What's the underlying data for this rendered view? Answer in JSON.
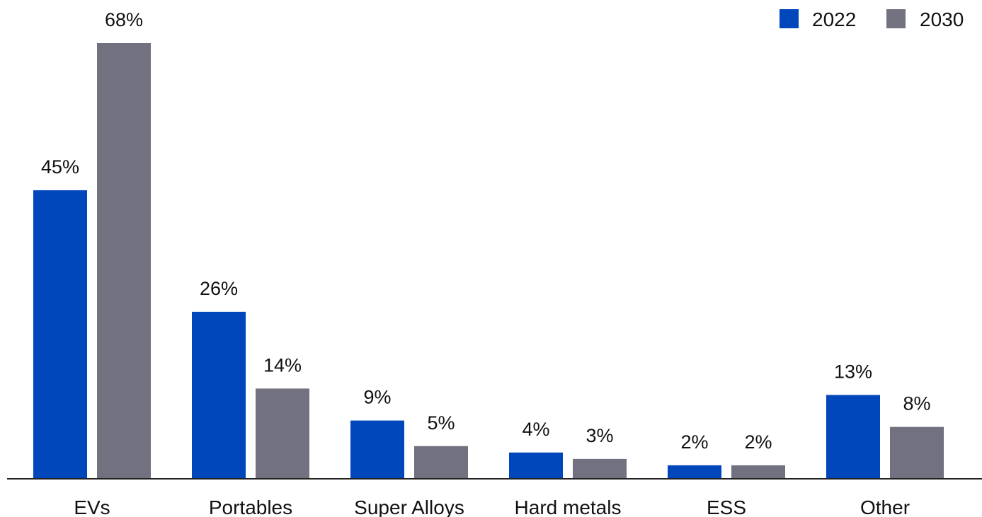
{
  "chart_data": {
    "type": "bar",
    "categories": [
      "EVs",
      "Portables",
      "Super Alloys",
      "Hard metals",
      "ESS",
      "Other"
    ],
    "series": [
      {
        "name": "2022",
        "values": [
          45,
          26,
          9,
          4,
          2,
          13
        ],
        "labels": [
          "45%",
          "26%",
          "9%",
          "4%",
          "2%",
          "13%"
        ],
        "color": "#0047bb"
      },
      {
        "name": "2030",
        "values": [
          68,
          14,
          5,
          3,
          2,
          8
        ],
        "labels": [
          "68%",
          "14%",
          "5%",
          "3%",
          "2%",
          "8%"
        ],
        "color": "#71717f"
      }
    ],
    "title": "",
    "xlabel": "",
    "ylabel": "",
    "ylim": [
      0,
      68
    ],
    "grid": false,
    "legend_position": "top-right",
    "axis_color": "#222222"
  }
}
